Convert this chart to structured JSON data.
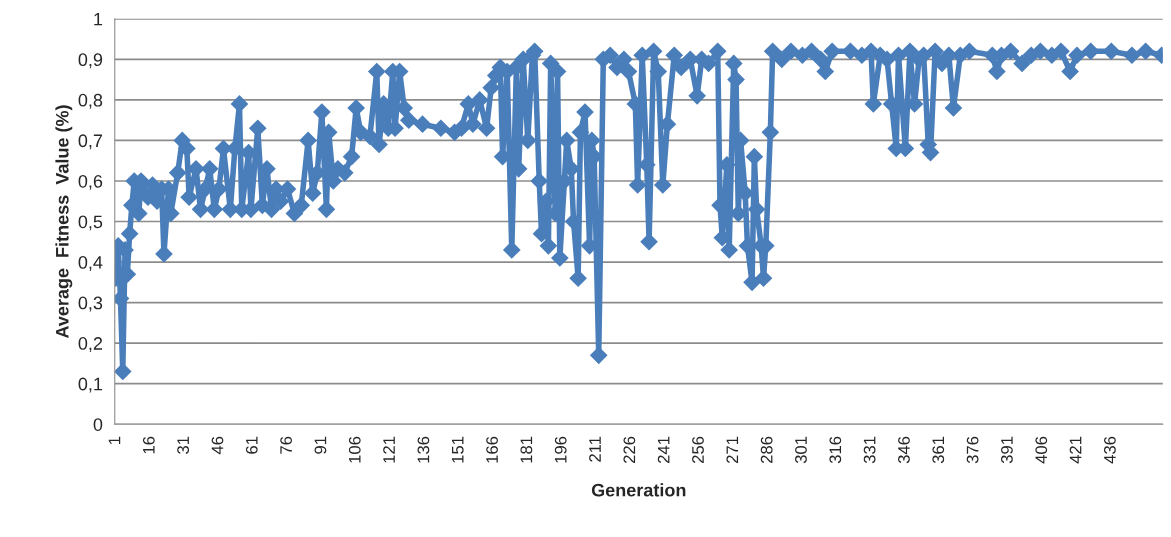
{
  "chart_data": {
    "type": "line",
    "xlabel": "Generation",
    "ylabel": "Average  Fitness  Value (%)",
    "x": [
      1,
      2,
      3,
      4,
      5,
      6,
      7,
      8,
      9,
      11,
      12,
      15,
      17,
      19,
      21,
      22,
      24,
      25,
      28,
      30,
      32,
      33,
      36,
      38,
      40,
      42,
      44,
      46,
      48,
      51,
      53,
      55,
      56,
      59,
      60,
      63,
      65,
      67,
      69,
      71,
      73,
      76,
      79,
      82,
      85,
      87,
      89,
      91,
      93,
      94,
      96,
      98,
      101,
      104,
      106,
      108,
      112,
      115,
      116,
      118,
      120,
      122,
      123,
      125,
      127,
      129,
      135,
      143,
      149,
      152,
      155,
      157,
      160,
      163,
      165,
      167,
      169,
      170,
      172,
      174,
      176,
      177,
      179,
      181,
      183,
      184,
      186,
      187,
      189,
      190,
      191,
      193,
      194,
      195,
      197,
      198,
      200,
      201,
      203,
      204,
      206,
      208,
      209,
      210,
      212,
      214,
      217,
      220,
      223,
      225,
      228,
      229,
      231,
      233,
      234,
      236,
      238,
      240,
      242,
      245,
      248,
      252,
      255,
      257,
      260,
      264,
      265,
      266,
      268,
      269,
      271,
      272,
      273,
      274,
      276,
      277,
      279,
      280,
      281,
      283,
      284,
      285,
      287,
      288,
      292,
      296,
      301,
      305,
      309,
      311,
      314,
      322,
      327,
      331,
      332,
      335,
      338,
      340,
      342,
      343,
      346,
      348,
      350,
      352,
      354,
      356,
      357,
      359,
      362,
      365,
      367,
      370,
      374,
      384,
      386,
      388,
      392,
      397,
      401,
      405,
      410,
      414,
      418,
      421,
      427,
      436,
      445,
      451,
      458
    ],
    "series": [
      {
        "color": "#4a7ebb",
        "values": [
          0.36,
          0.44,
          0.31,
          0.13,
          0.43,
          0.37,
          0.47,
          0.54,
          0.6,
          0.52,
          0.6,
          0.56,
          0.59,
          0.55,
          0.58,
          0.42,
          0.58,
          0.52,
          0.62,
          0.7,
          0.68,
          0.56,
          0.63,
          0.53,
          0.58,
          0.63,
          0.53,
          0.58,
          0.68,
          0.53,
          0.68,
          0.79,
          0.53,
          0.67,
          0.53,
          0.73,
          0.54,
          0.63,
          0.53,
          0.58,
          0.55,
          0.58,
          0.52,
          0.54,
          0.7,
          0.57,
          0.62,
          0.77,
          0.53,
          0.72,
          0.6,
          0.63,
          0.62,
          0.66,
          0.78,
          0.72,
          0.71,
          0.87,
          0.69,
          0.79,
          0.73,
          0.87,
          0.73,
          0.87,
          0.78,
          0.75,
          0.74,
          0.73,
          0.72,
          0.73,
          0.79,
          0.74,
          0.8,
          0.73,
          0.83,
          0.86,
          0.88,
          0.66,
          0.87,
          0.43,
          0.88,
          0.63,
          0.9,
          0.7,
          0.91,
          0.92,
          0.6,
          0.47,
          0.55,
          0.44,
          0.89,
          0.52,
          0.87,
          0.41,
          0.6,
          0.7,
          0.63,
          0.5,
          0.36,
          0.72,
          0.77,
          0.44,
          0.7,
          0.66,
          0.17,
          0.9,
          0.91,
          0.88,
          0.9,
          0.87,
          0.79,
          0.59,
          0.91,
          0.64,
          0.45,
          0.92,
          0.87,
          0.59,
          0.74,
          0.91,
          0.88,
          0.9,
          0.81,
          0.9,
          0.89,
          0.92,
          0.54,
          0.46,
          0.64,
          0.43,
          0.89,
          0.85,
          0.52,
          0.7,
          0.57,
          0.44,
          0.35,
          0.66,
          0.53,
          0.44,
          0.36,
          0.44,
          0.72,
          0.92,
          0.9,
          0.92,
          0.91,
          0.92,
          0.9,
          0.87,
          0.92,
          0.92,
          0.91,
          0.92,
          0.79,
          0.91,
          0.9,
          0.79,
          0.68,
          0.91,
          0.68,
          0.92,
          0.79,
          0.9,
          0.91,
          0.69,
          0.67,
          0.92,
          0.89,
          0.91,
          0.78,
          0.91,
          0.92,
          0.91,
          0.87,
          0.91,
          0.92,
          0.89,
          0.91,
          0.92,
          0.91,
          0.92,
          0.87,
          0.91,
          0.92,
          0.92,
          0.91,
          0.92,
          0.91
        ]
      }
    ],
    "xlim": [
      0.5,
      458.5
    ],
    "xticks": [
      1,
      16,
      31,
      46,
      61,
      76,
      91,
      106,
      121,
      136,
      151,
      166,
      181,
      196,
      211,
      226,
      241,
      256,
      271,
      286,
      301,
      316,
      331,
      346,
      361,
      376,
      391,
      406,
      421,
      436
    ],
    "ylim": [
      0,
      1
    ],
    "yticks": [
      0,
      {
        "value": 0.1,
        "label": "0,1"
      },
      {
        "value": 0.2,
        "label": "0,2"
      },
      {
        "value": 0.3,
        "label": "0,3"
      },
      {
        "value": 0.4,
        "label": "0,4"
      },
      {
        "value": 0.5,
        "label": "0,5"
      },
      {
        "value": 0.6,
        "label": "0,6"
      },
      {
        "value": 0.7,
        "label": "0,7"
      },
      {
        "value": 0.8,
        "label": "0,8"
      },
      {
        "value": 0.9,
        "label": "0,9"
      },
      1
    ],
    "grid": "y",
    "marker": "diamond",
    "line_style": "solid"
  }
}
